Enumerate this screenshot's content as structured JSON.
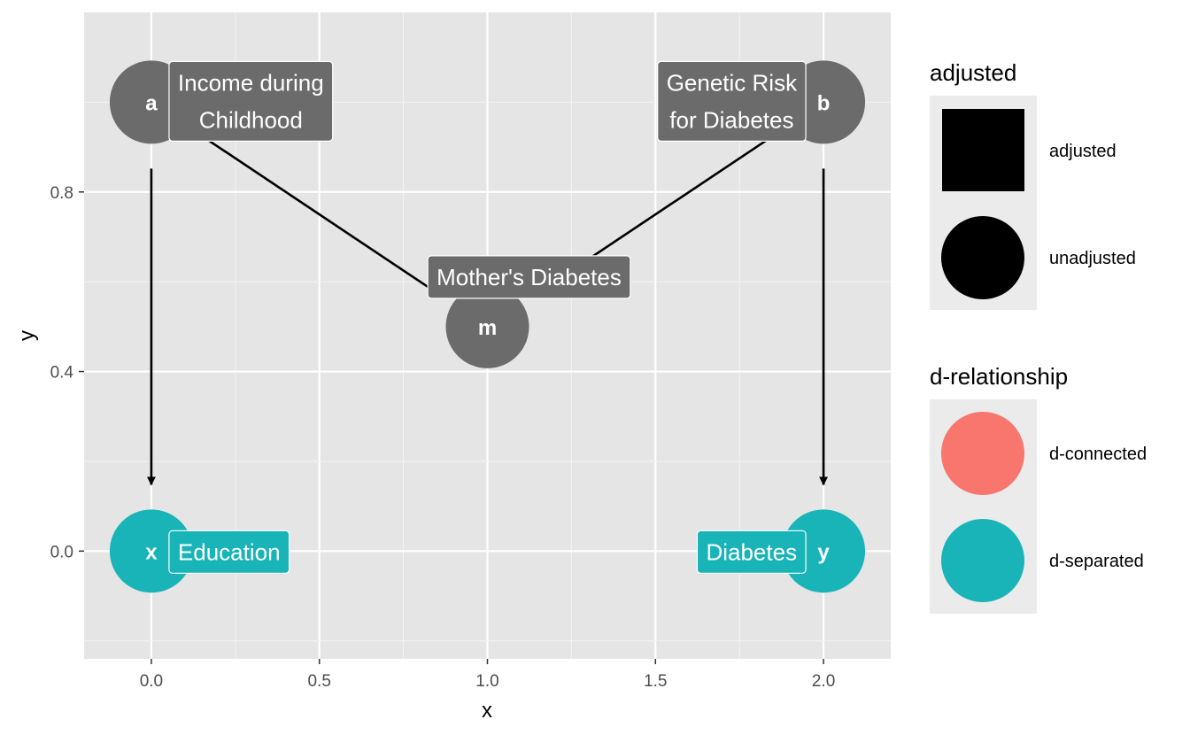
{
  "axes": {
    "xlabel": "x",
    "ylabel": "y",
    "xlim": [
      -0.2,
      2.2
    ],
    "ylim": [
      -0.24,
      1.2
    ],
    "x_ticks": [
      0.0,
      0.5,
      1.0,
      1.5,
      2.0
    ],
    "x_tick_labels": [
      "0.0",
      "0.5",
      "1.0",
      "1.5",
      "2.0"
    ],
    "y_ticks": [
      0.0,
      0.4,
      0.8
    ],
    "y_tick_labels": [
      "0.0",
      "0.4",
      "0.8"
    ],
    "grid": true
  },
  "nodes": [
    {
      "id": "a",
      "x": 0,
      "y": 1.0,
      "label": "Income during\nChildhood",
      "status": "d-connected",
      "adjusted": "unadjusted"
    },
    {
      "id": "b",
      "x": 2,
      "y": 1.0,
      "label": "Genetic Risk\nfor Diabetes",
      "status": "d-connected",
      "adjusted": "unadjusted"
    },
    {
      "id": "m",
      "x": 1,
      "y": 0.5,
      "label": "Mother's Diabetes",
      "status": "d-connected",
      "adjusted": "unadjusted"
    },
    {
      "id": "x",
      "x": 0,
      "y": 0.0,
      "label": "Education",
      "status": "d-separated",
      "adjusted": "unadjusted"
    },
    {
      "id": "y",
      "x": 2,
      "y": 0.0,
      "label": "Diabetes",
      "status": "d-separated",
      "adjusted": "unadjusted"
    }
  ],
  "edges": [
    {
      "from": "a",
      "to": "x",
      "arrow": true
    },
    {
      "from": "a",
      "to": "m",
      "arrow": false
    },
    {
      "from": "b",
      "to": "m",
      "arrow": false
    },
    {
      "from": "b",
      "to": "y",
      "arrow": true
    }
  ],
  "legend": {
    "adjusted": {
      "title": "adjusted",
      "items": [
        {
          "label": "adjusted",
          "shape": "square"
        },
        {
          "label": "unadjusted",
          "shape": "circle"
        }
      ]
    },
    "d_relationship": {
      "title": "d-relationship",
      "items": [
        {
          "label": "d-connected",
          "color": "#f8766d"
        },
        {
          "label": "d-separated",
          "color": "#19b4b8"
        }
      ]
    }
  },
  "colors": {
    "panel_bg": "#e5e5e5",
    "node_gray": "#6b6b6b",
    "d_separated": "#19b4b8",
    "d_connected": "#f8766d"
  }
}
